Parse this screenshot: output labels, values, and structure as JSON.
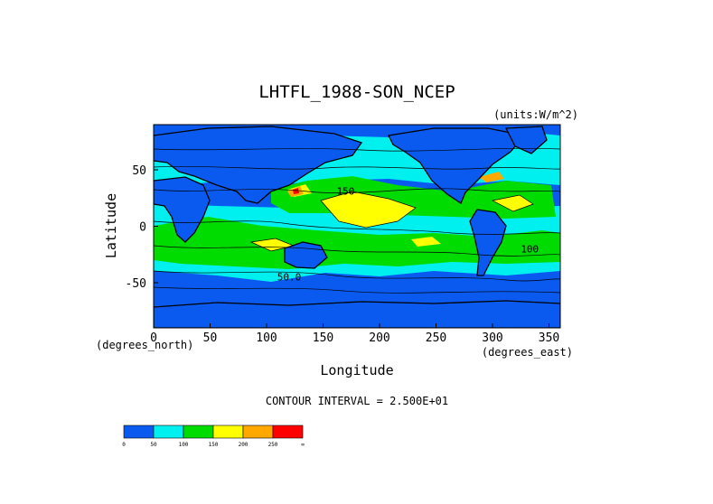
{
  "chart_data": {
    "type": "heatmap",
    "title": "LHTFL_1988-SON_NCEP",
    "units": "(units:W/m^2)",
    "xlabel": "Longitude",
    "ylabel": "Latitude",
    "x_unit_label": "(degrees_east)",
    "y_unit_label": "(degrees_north)",
    "xlim": [
      0,
      360
    ],
    "ylim": [
      -90,
      90
    ],
    "x_ticks": [
      0,
      50,
      100,
      150,
      200,
      250,
      300,
      350
    ],
    "y_ticks": [
      50,
      0,
      -50
    ],
    "grid": false,
    "contour_note": "CONTOUR INTERVAL = 2.500E+01",
    "contour_interval": 25,
    "contour_labels": [
      {
        "text": "150",
        "lon": 170,
        "lat": 28
      },
      {
        "text": "100",
        "lon": 333,
        "lat": -23
      },
      {
        "text": "50.0",
        "lon": 120,
        "lat": -48
      }
    ],
    "colorbar": {
      "levels": [
        "0",
        "50",
        "100",
        "150",
        "200",
        "250",
        "∞"
      ],
      "colors": [
        "#0a5af0",
        "#00f0f0",
        "#00dc00",
        "#ffff00",
        "#ffa800",
        "#ff0000"
      ]
    }
  }
}
